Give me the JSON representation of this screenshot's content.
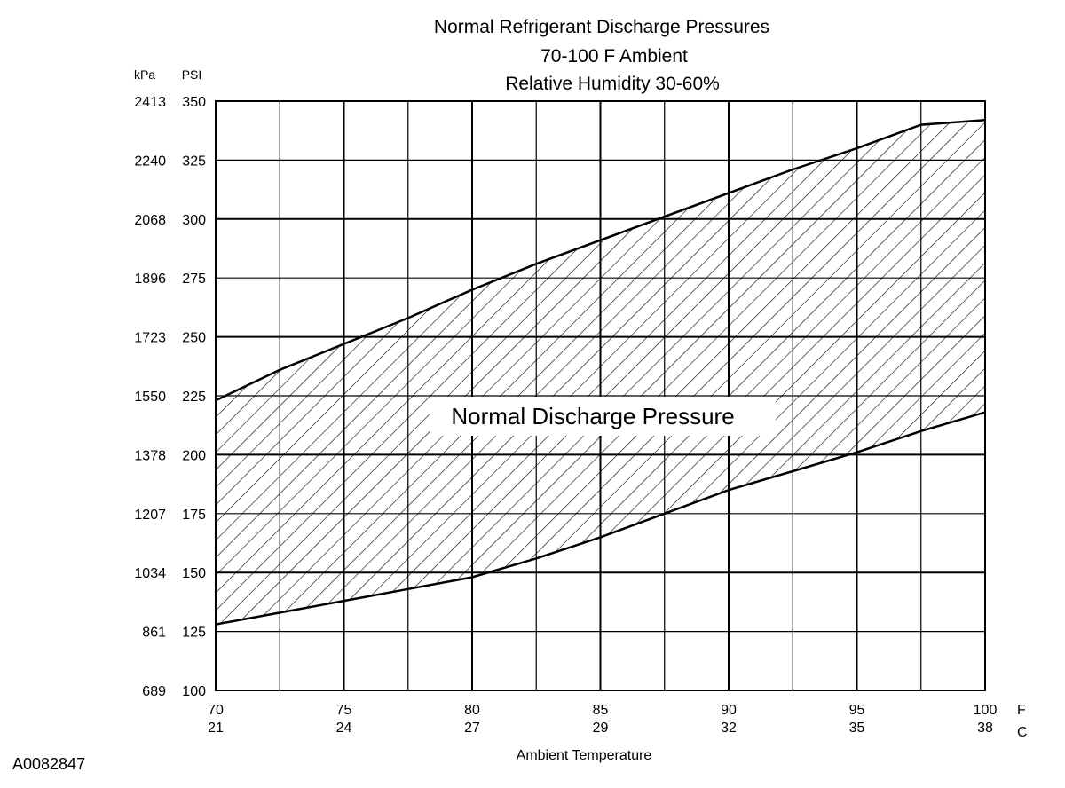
{
  "chart_data": {
    "type": "area",
    "title": "Normal  Refrigerant  Discharge  Pressures",
    "subtitle_lines": [
      "70-100 F Ambient",
      "Relative Humidity 30-60%"
    ],
    "xlabel": "Ambient Temperature",
    "x_unit_primary": "F",
    "x_unit_secondary": "C",
    "y_unit_primary": "PSI",
    "y_unit_secondary": "kPa",
    "xlim": [
      70,
      100
    ],
    "ylim": [
      100,
      350
    ],
    "x_ticks": [
      {
        "f": "70",
        "c": "21"
      },
      {
        "f": "75",
        "c": "24"
      },
      {
        "f": "80",
        "c": "27"
      },
      {
        "f": "85",
        "c": "29"
      },
      {
        "f": "90",
        "c": "32"
      },
      {
        "f": "95",
        "c": "35"
      },
      {
        "f": "100",
        "c": "38"
      }
    ],
    "y_ticks": [
      {
        "psi": "350",
        "kpa": "2413"
      },
      {
        "psi": "325",
        "kpa": "2240"
      },
      {
        "psi": "300",
        "kpa": "2068"
      },
      {
        "psi": "275",
        "kpa": "1896"
      },
      {
        "psi": "250",
        "kpa": "1723"
      },
      {
        "psi": "225",
        "kpa": "1550"
      },
      {
        "psi": "200",
        "kpa": "1378"
      },
      {
        "psi": "175",
        "kpa": "1207"
      },
      {
        "psi": "150",
        "kpa": "1034"
      },
      {
        "psi": "125",
        "kpa": "861"
      },
      {
        "psi": "100",
        "kpa": "689"
      }
    ],
    "x_grid_minor_step": 2.5,
    "y_grid_step": 25,
    "grid": true,
    "band_label": "Normal Discharge Pressure",
    "series": [
      {
        "x": [
          70,
          72.5,
          75,
          77.5,
          80,
          82.5,
          85,
          87.5,
          90,
          92.5,
          95,
          97.5,
          100
        ],
        "values": [
          223,
          236,
          247,
          258,
          270,
          281,
          291,
          301,
          311,
          321,
          330,
          340,
          342
        ]
      },
      {
        "x": [
          70,
          72.5,
          75,
          77.5,
          80,
          82.5,
          85,
          87.5,
          90,
          92.5,
          95,
          97.5,
          100
        ],
        "values": [
          128,
          133,
          138,
          143,
          148,
          156,
          165,
          175,
          185,
          193,
          201,
          210,
          218
        ]
      }
    ],
    "fill": "diagonal hatch"
  },
  "figure_id": "A0082847"
}
